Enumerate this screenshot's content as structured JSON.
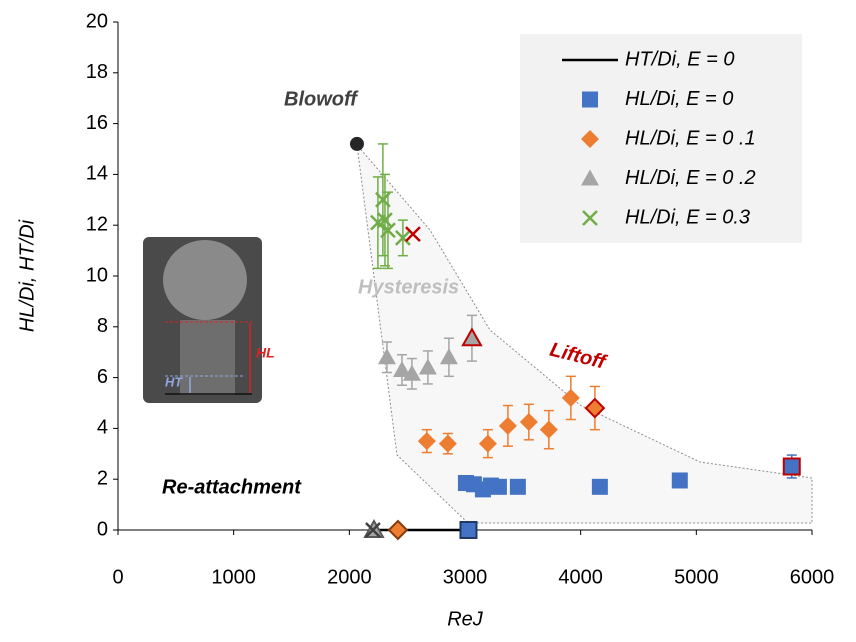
{
  "chart_data": {
    "type": "scatter",
    "xlabel": "ReJ",
    "ylabel": "HL/Di, HT/Di",
    "xlim": [
      0,
      6000
    ],
    "ylim": [
      0,
      20
    ],
    "xticks": [
      0,
      1000,
      2000,
      3000,
      4000,
      5000,
      6000
    ],
    "yticks": [
      0,
      2,
      4,
      6,
      8,
      10,
      12,
      14,
      16,
      18,
      20
    ],
    "annotations": [
      "Blowoff",
      "Hysteresis",
      "Liftoff",
      "Re-attachment"
    ],
    "inset_labels": [
      "HL",
      "HT"
    ],
    "blowoff_point": {
      "x": 2066,
      "y": 15.2,
      "color": "#262626"
    },
    "series": [
      {
        "name": "HT/Di, E = 0",
        "marker": "line",
        "color": "#000000",
        "x": [
          2213,
          3030
        ],
        "values": [
          0,
          0
        ]
      },
      {
        "name": "HL/Di, E = 0",
        "marker": "square",
        "color": "#4472c4",
        "x": [
          3030,
          3008,
          3077,
          3155,
          3224,
          3293,
          3457,
          4166,
          4857,
          5825
        ],
        "values": [
          0,
          1.85,
          1.8,
          1.6,
          1.75,
          1.7,
          1.7,
          1.7,
          1.95,
          2.5
        ],
        "errors": [
          null,
          null,
          null,
          null,
          null,
          null,
          null,
          null,
          null,
          0.45
        ],
        "edge_colors": [
          "#1f3864",
          null,
          null,
          null,
          null,
          null,
          null,
          null,
          null,
          "#c00000"
        ]
      },
      {
        "name": "HL/Di, E = 0 .1",
        "marker": "diamond",
        "color": "#ed7d31",
        "x": [
          2420,
          2670,
          2852,
          3198,
          3371,
          3552,
          3725,
          3915,
          4123
        ],
        "values": [
          0,
          3.5,
          3.4,
          3.4,
          4.1,
          4.25,
          3.95,
          5.2,
          4.8
        ],
        "errors": [
          null,
          0.45,
          0.4,
          0.55,
          0.8,
          0.7,
          0.75,
          0.85,
          0.85
        ],
        "edge_colors": [
          "#843c0c",
          null,
          null,
          null,
          null,
          null,
          null,
          null,
          "#c00000"
        ]
      },
      {
        "name": "HL/Di, E = 0 .2",
        "marker": "triangle",
        "color": "#a5a5a5",
        "x": [
          2213,
          2325,
          2455,
          2541,
          2679,
          2861,
          3060
        ],
        "values": [
          0,
          6.8,
          6.3,
          6.15,
          6.4,
          6.8,
          7.55
        ],
        "errors": [
          null,
          0.6,
          0.6,
          0.6,
          0.65,
          0.75,
          0.9
        ],
        "edge_colors": [
          "#595959",
          null,
          null,
          null,
          null,
          null,
          "#c00000"
        ]
      },
      {
        "name": "HL/Di, E = 0.3",
        "marker": "x",
        "color": "#70ad47",
        "x": [
          2204,
          2247,
          2290,
          2308,
          2334,
          2463,
          2550
        ],
        "values": [
          0,
          12.1,
          13.0,
          12.2,
          11.8,
          11.5,
          11.65
        ],
        "errors": [
          null,
          1.8,
          2.2,
          1.8,
          1.5,
          0.7,
          null
        ],
        "edge_colors": [
          "#404040",
          null,
          null,
          null,
          null,
          null,
          "#c00000"
        ]
      }
    ]
  }
}
